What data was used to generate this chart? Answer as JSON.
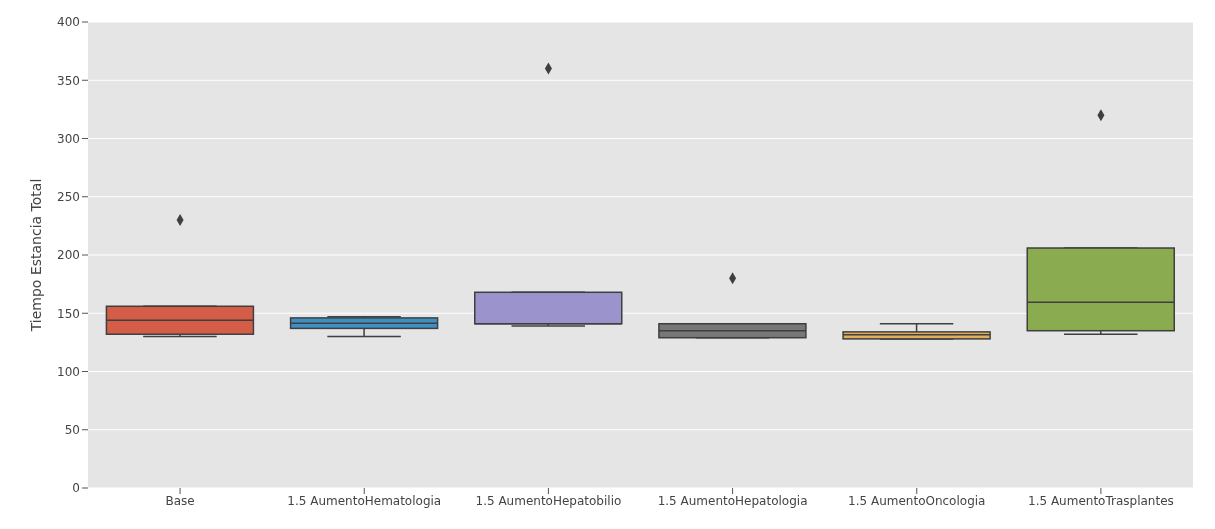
{
  "chart_data": {
    "type": "box",
    "ylabel": "Tiempo Estancia Total",
    "categories": [
      "Base",
      "1.5 AumentoHematologia",
      "1.5 AumentoHepatobilio",
      "1.5 AumentoHepatologia",
      "1.5 AumentoOncologia",
      "1.5 AumentoTrasplantes"
    ],
    "colors": [
      "#d35d47",
      "#3f8fc4",
      "#9b94cc",
      "#777777",
      "#e0b05a",
      "#8aab50"
    ],
    "boxes": [
      {
        "low": 130,
        "q1": 132,
        "median": 144,
        "q3": 156,
        "high": 156,
        "outliers": [
          230
        ]
      },
      {
        "low": 130,
        "q1": 137,
        "median": 141.5,
        "q3": 146,
        "high": 147
      },
      {
        "low": 139,
        "q1": 141,
        "median": 141,
        "q3": 168,
        "high": 168,
        "outliers": [
          360
        ]
      },
      {
        "low": 129,
        "q1": 129,
        "median": 135,
        "q3": 141,
        "high": 141,
        "outliers": [
          180
        ]
      },
      {
        "low": 128,
        "q1": 128,
        "median": 131.5,
        "q3": 134,
        "high": 141
      },
      {
        "low": 132,
        "q1": 135,
        "median": 159.5,
        "q3": 206,
        "high": 206,
        "outliers": [
          320
        ]
      }
    ],
    "ylim": [
      0,
      400
    ],
    "yticks": [
      0,
      50,
      100,
      150,
      200,
      250,
      300,
      350,
      400
    ],
    "grid": "y"
  }
}
